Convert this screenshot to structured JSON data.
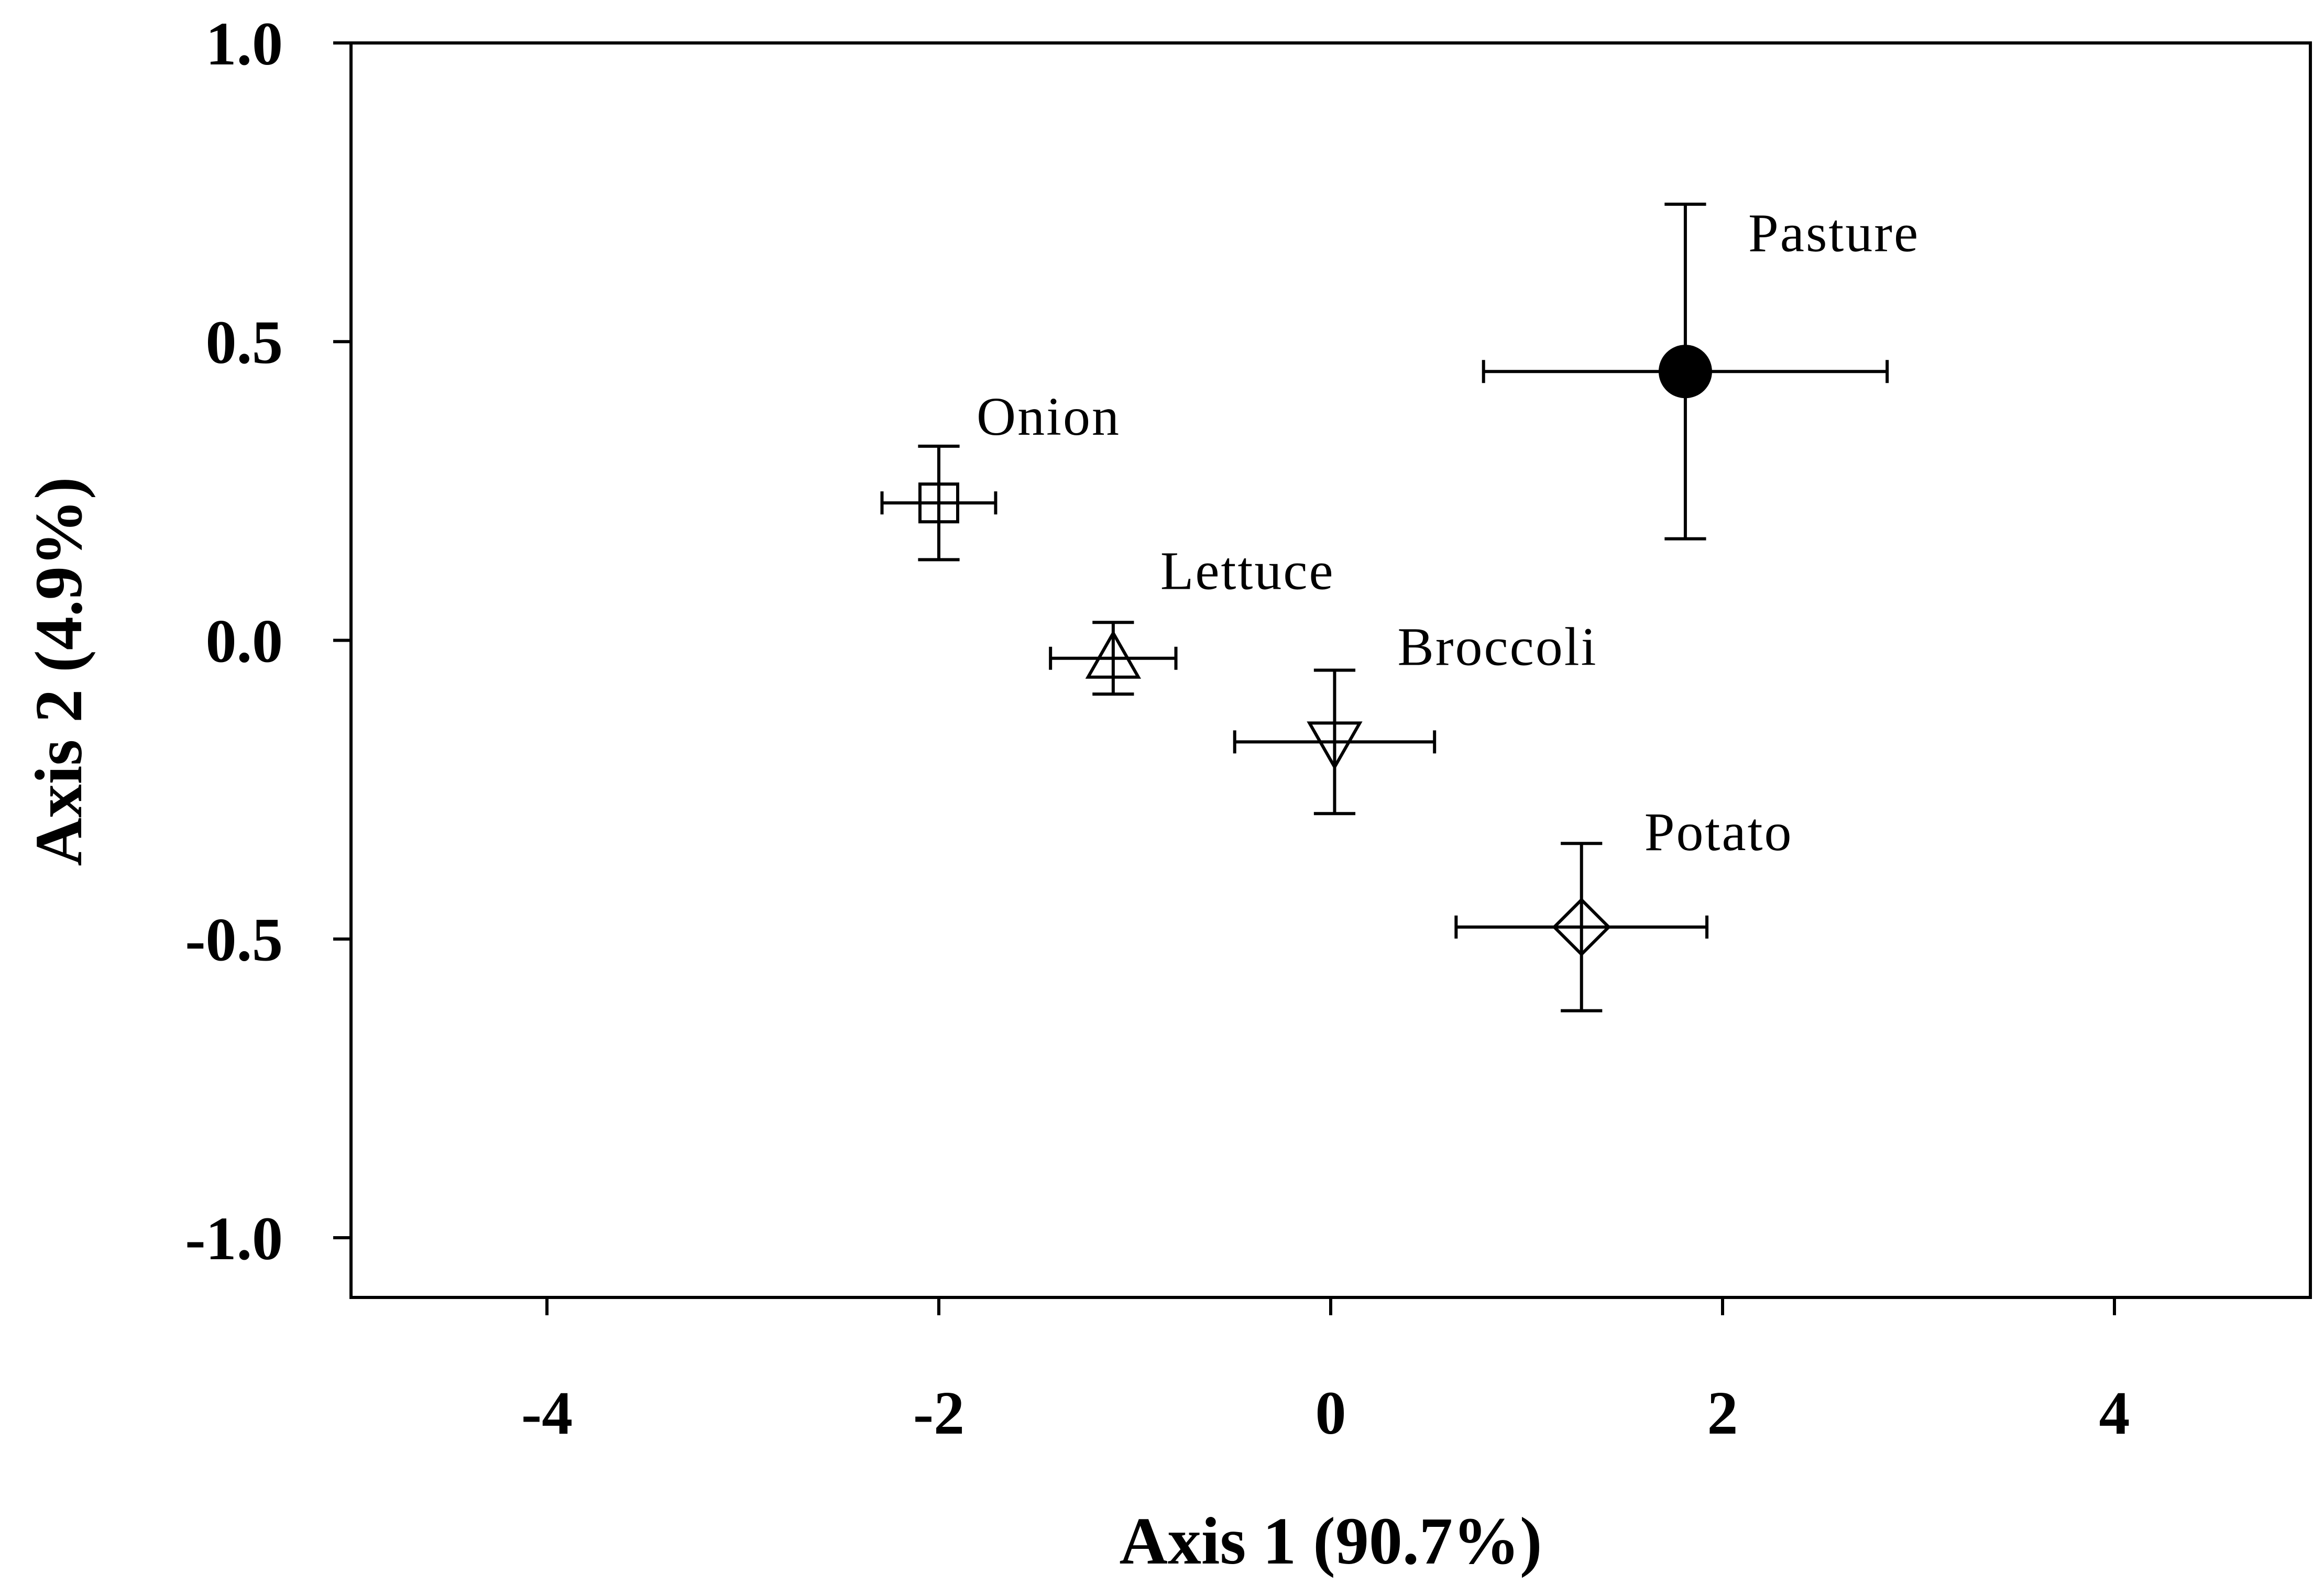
{
  "chart_data": {
    "type": "scatter",
    "title": "",
    "xlabel": "Axis 1 (90.7%)",
    "ylabel": "Axis 2 (4.9%)",
    "xlim": [
      -5,
      5
    ],
    "ylim": [
      -1.1,
      1.0
    ],
    "xticks": [
      -4,
      -2,
      0,
      2,
      4
    ],
    "xtick_labels": [
      "-4",
      "-2",
      "0",
      "2",
      "4"
    ],
    "yticks": [
      1.0,
      0.5,
      0.0,
      -0.5,
      -1.0
    ],
    "ytick_labels": [
      "1.0",
      "0.5",
      "0.0",
      "-0.5",
      "-1.0"
    ],
    "grid": false,
    "legend": "none",
    "points": [
      {
        "label": "Onion",
        "x": -2.0,
        "y": 0.23,
        "x_err": 0.29,
        "y_err": 0.095,
        "marker": "square",
        "filled": false
      },
      {
        "label": "Lettuce",
        "x": -1.11,
        "y": -0.03,
        "x_err": 0.32,
        "y_err": 0.06,
        "marker": "triangle-up",
        "filled": false
      },
      {
        "label": "Broccoli",
        "x": 0.02,
        "y": -0.17,
        "x_err": 0.51,
        "y_err": 0.12,
        "marker": "triangle-down",
        "filled": false
      },
      {
        "label": "Potato",
        "x": 1.28,
        "y": -0.48,
        "x_err": 0.64,
        "y_err": 0.14,
        "marker": "diamond",
        "filled": false
      },
      {
        "label": "Pasture",
        "x": 1.81,
        "y": 0.45,
        "x_err": 1.03,
        "y_err": 0.28,
        "marker": "circle",
        "filled": true
      }
    ],
    "colors": {
      "marker": "#000000",
      "background": "#ffffff"
    }
  }
}
